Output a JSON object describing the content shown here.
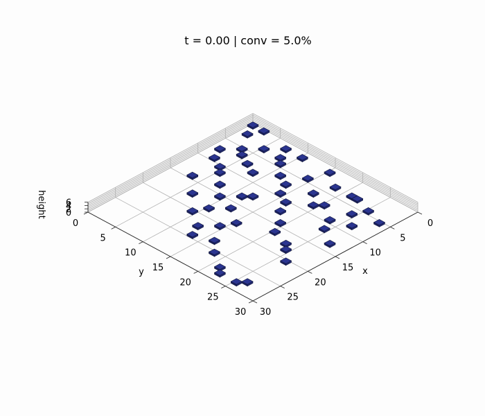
{
  "chart_data": {
    "type": "bar3d",
    "title": "t = 0.00 | conv = 5.0%",
    "xlabel": "x",
    "ylabel": "y",
    "zlabel": "height",
    "xlim": [
      0,
      30
    ],
    "ylim": [
      0,
      30
    ],
    "zlim": [
      0,
      6
    ],
    "x_ticks": [
      "0",
      "5",
      "10",
      "15",
      "20",
      "25",
      "30"
    ],
    "y_ticks": [
      "0",
      "5",
      "10",
      "15",
      "20",
      "25",
      "30"
    ],
    "z_ticks": [
      "0",
      "2",
      "4",
      "6"
    ],
    "bar_color": "#2b3590",
    "bar_height": 1,
    "cells": [
      [
        0,
        0
      ],
      [
        2,
        0
      ],
      [
        7,
        1
      ],
      [
        10,
        1
      ],
      [
        15,
        1
      ],
      [
        18,
        3
      ],
      [
        21,
        3
      ],
      [
        22,
        3
      ],
      [
        25,
        4
      ],
      [
        28,
        5
      ],
      [
        1,
        2
      ],
      [
        3,
        5
      ],
      [
        4,
        6
      ],
      [
        6,
        7
      ],
      [
        8,
        8
      ],
      [
        11,
        6
      ],
      [
        13,
        7
      ],
      [
        14,
        9
      ],
      [
        16,
        10
      ],
      [
        17,
        12
      ],
      [
        19,
        14
      ],
      [
        20,
        16
      ],
      [
        23,
        17
      ],
      [
        24,
        18
      ],
      [
        26,
        20
      ],
      [
        2,
        9
      ],
      [
        5,
        11
      ],
      [
        7,
        13
      ],
      [
        9,
        15
      ],
      [
        12,
        16
      ],
      [
        15,
        18
      ],
      [
        3,
        14
      ],
      [
        6,
        17
      ],
      [
        9,
        20
      ],
      [
        12,
        22
      ],
      [
        13,
        24
      ],
      [
        16,
        23
      ],
      [
        18,
        25
      ],
      [
        21,
        27
      ],
      [
        22,
        28
      ],
      [
        25,
        28
      ],
      [
        26,
        27
      ],
      [
        11,
        13
      ],
      [
        12,
        12
      ],
      [
        19,
        8
      ],
      [
        20,
        7
      ],
      [
        23,
        9
      ],
      [
        24,
        11
      ],
      [
        27,
        13
      ],
      [
        5,
        3
      ],
      [
        8,
        3
      ],
      [
        9,
        4
      ],
      [
        14,
        4
      ],
      [
        17,
        6
      ],
      [
        24,
        6
      ],
      [
        26,
        8
      ],
      [
        1,
        7
      ],
      [
        4,
        10
      ],
      [
        10,
        18
      ],
      [
        14,
        20
      ]
    ],
    "grid": true
  }
}
